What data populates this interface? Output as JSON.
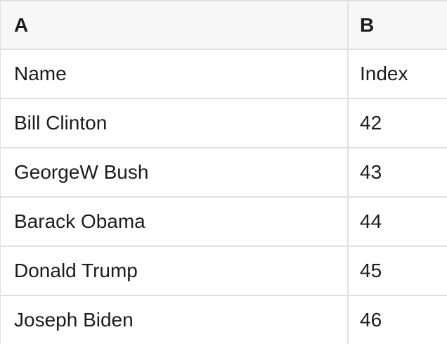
{
  "table": {
    "header": {
      "col_a": "A",
      "col_b": "B"
    },
    "rows": [
      {
        "a": "Name",
        "b": "Index"
      },
      {
        "a": "Bill Clinton",
        "b": "42"
      },
      {
        "a": "GeorgeW Bush",
        "b": "43"
      },
      {
        "a": "Barack Obama",
        "b": "44"
      },
      {
        "a": "Donald Trump",
        "b": "45"
      },
      {
        "a": "Joseph Biden",
        "b": "46"
      }
    ],
    "colors": {
      "header_bg": "#f7f7f7",
      "row_bg": "#ffffff",
      "border": "#e0e0e0",
      "text": "#1c1c1c"
    }
  }
}
